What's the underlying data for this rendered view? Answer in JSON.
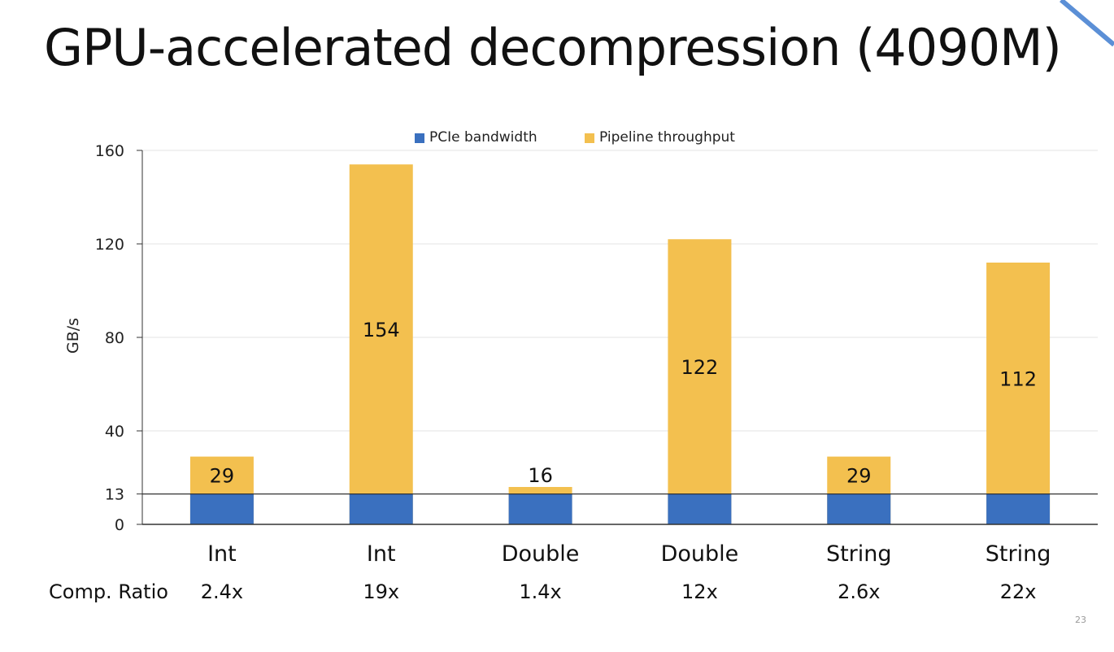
{
  "slide": {
    "title": "GPU-accelerated decompression (4090M)",
    "page_number": "23",
    "ratio_row_label": "Comp. Ratio"
  },
  "colors": {
    "pcie": "#3a70bf",
    "pipeline": "#f3c04f",
    "axis": "#333333",
    "grid": "#e3e3e3",
    "corner_accent": "#5b8fd6"
  },
  "chart_data": {
    "type": "bar",
    "stacked": true,
    "categories": [
      "Int",
      "Int",
      "Double",
      "Double",
      "String",
      "String"
    ],
    "comp_ratios": [
      "2.4x",
      "19x",
      "1.4x",
      "12x",
      "2.6x",
      "22x"
    ],
    "series": [
      {
        "name": "PCIe bandwidth",
        "values": [
          13,
          13,
          13,
          13,
          13,
          13
        ]
      },
      {
        "name": "Pipeline throughput",
        "values": [
          29,
          154,
          16,
          122,
          29,
          112
        ],
        "data_labels": [
          "29",
          "154",
          "16",
          "122",
          "29",
          "112"
        ]
      }
    ],
    "ylabel": "GB/s",
    "xlabel": "",
    "ylim": [
      0,
      160
    ],
    "yticks": [
      0,
      13,
      40,
      80,
      120,
      160
    ],
    "reference_line": 13,
    "grid": true,
    "legend_position": "top"
  }
}
